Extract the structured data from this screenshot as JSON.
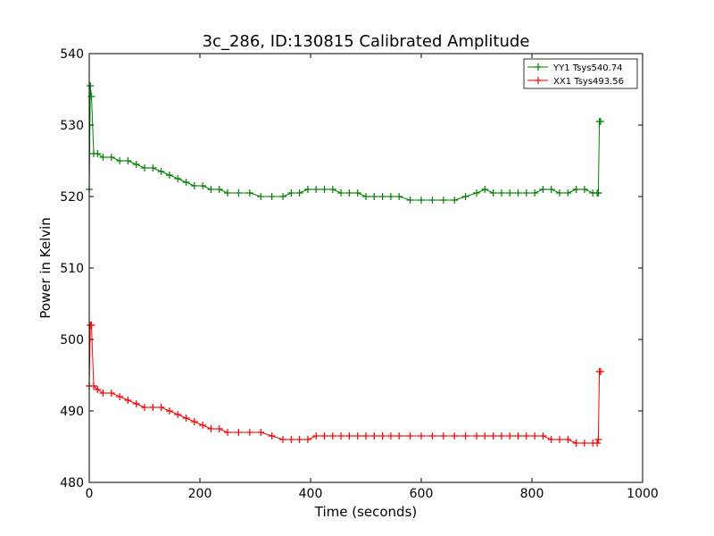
{
  "chart_data": {
    "type": "line",
    "title": "3c_286, ID:130815 Calibrated Amplitude",
    "xlabel": "Time (seconds)",
    "ylabel": "Power in Kelvin",
    "xlim": [
      0,
      1000
    ],
    "ylim": [
      480,
      540
    ],
    "xticks": [
      "0",
      "200",
      "400",
      "600",
      "800",
      "1000"
    ],
    "yticks": [
      "480",
      "490",
      "500",
      "510",
      "520",
      "530",
      "540"
    ],
    "grid": false,
    "legend_position": "top-right",
    "marker": "+",
    "series": [
      {
        "name": "YY1 Tsys540.74",
        "color": "#008000",
        "x": [
          0,
          2,
          4,
          8,
          15,
          25,
          40,
          55,
          70,
          85,
          100,
          115,
          130,
          145,
          160,
          175,
          190,
          205,
          220,
          235,
          250,
          270,
          290,
          310,
          330,
          350,
          365,
          380,
          395,
          410,
          425,
          440,
          455,
          470,
          485,
          500,
          515,
          530,
          545,
          560,
          580,
          600,
          620,
          640,
          660,
          680,
          700,
          715,
          730,
          745,
          760,
          775,
          790,
          805,
          820,
          835,
          850,
          865,
          880,
          895,
          910,
          918,
          920,
          922,
          924
        ],
        "y": [
          521,
          535.5,
          534,
          526,
          526,
          525.5,
          525.5,
          525,
          525,
          524.5,
          524,
          524,
          523.5,
          523,
          522.5,
          522,
          521.5,
          521.5,
          521,
          521,
          520.5,
          520.5,
          520.5,
          520,
          520,
          520,
          520.5,
          520.5,
          521,
          521,
          521,
          521,
          520.5,
          520.5,
          520.5,
          520,
          520,
          520,
          520,
          520,
          519.5,
          519.5,
          519.5,
          519.5,
          519.5,
          520,
          520.5,
          521,
          520.5,
          520.5,
          520.5,
          520.5,
          520.5,
          520.5,
          521,
          521,
          520.5,
          520.5,
          521,
          521,
          520.5,
          520.5,
          520.5,
          530.5,
          530.5
        ]
      },
      {
        "name": "XX1 Tsys493.56",
        "color": "#ff0000",
        "x": [
          0,
          2,
          4,
          8,
          15,
          25,
          40,
          55,
          70,
          85,
          100,
          115,
          130,
          145,
          160,
          175,
          190,
          205,
          220,
          235,
          250,
          270,
          290,
          310,
          330,
          350,
          365,
          380,
          395,
          410,
          425,
          440,
          455,
          470,
          485,
          500,
          515,
          530,
          545,
          560,
          580,
          600,
          620,
          640,
          660,
          680,
          700,
          715,
          730,
          745,
          760,
          775,
          790,
          805,
          820,
          835,
          850,
          865,
          880,
          895,
          910,
          918,
          920,
          922,
          924
        ],
        "y": [
          493.5,
          502,
          502,
          493.5,
          493,
          492.5,
          492.5,
          492,
          491.5,
          491,
          490.5,
          490.5,
          490.5,
          490,
          489.5,
          489,
          488.5,
          488,
          487.5,
          487.5,
          487,
          487,
          487,
          487,
          486.5,
          486,
          486,
          486,
          486,
          486.5,
          486.5,
          486.5,
          486.5,
          486.5,
          486.5,
          486.5,
          486.5,
          486.5,
          486.5,
          486.5,
          486.5,
          486.5,
          486.5,
          486.5,
          486.5,
          486.5,
          486.5,
          486.5,
          486.5,
          486.5,
          486.5,
          486.5,
          486.5,
          486.5,
          486.5,
          486,
          486,
          486,
          485.5,
          485.5,
          485.5,
          485.5,
          486,
          495.5,
          495.5
        ]
      }
    ]
  }
}
